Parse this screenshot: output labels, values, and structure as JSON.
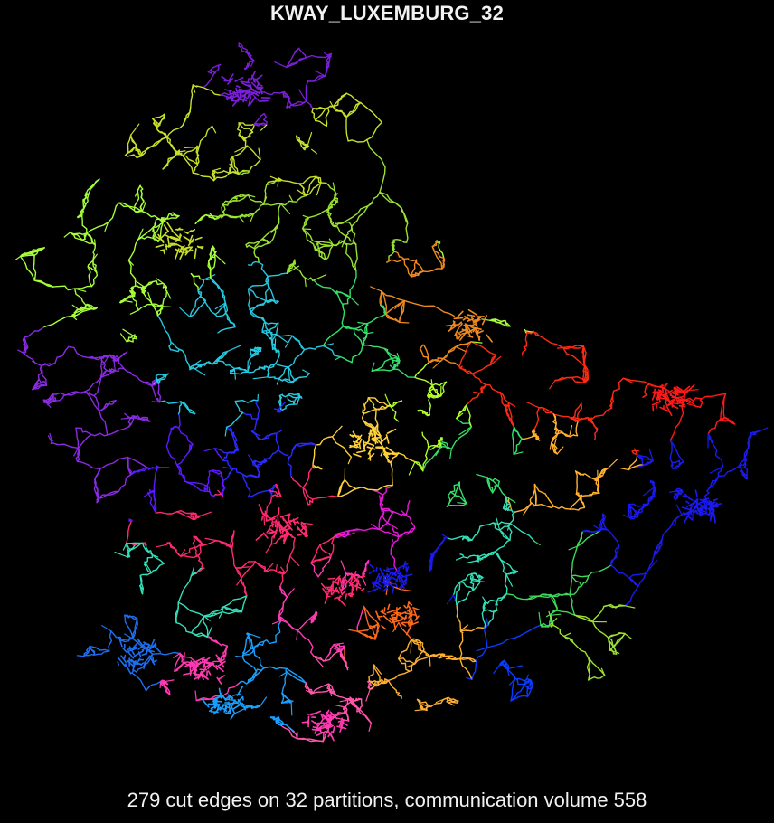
{
  "figure": {
    "title": "KWAY_LUXEMBURG_32",
    "caption": "279 cut edges on 32 partitions, communication volume 558",
    "background": "#000000",
    "partition_colors": [
      "#7b1fd8",
      "#c8e02a",
      "#9be230",
      "#26c9e0",
      "#8a2be2",
      "#35e06a",
      "#f08a1e",
      "#ff2a12",
      "#1a1af0",
      "#ffd23a",
      "#ff2a6e",
      "#e21ad6",
      "#33e0b8",
      "#1e6ef0",
      "#ff3bb3",
      "#1aa0ff",
      "#ffb030",
      "#2e6cff",
      "#a6ff3a",
      "#5b1aff",
      "#3dd85a",
      "#ff6a1a",
      "#0a3cff",
      "#e84aff",
      "#38ffd0",
      "#ff1a1a",
      "#b0ff2a",
      "#1e90ff",
      "#ff55aa",
      "#7cff1a",
      "#2a2aff",
      "#ffd000"
    ]
  }
}
